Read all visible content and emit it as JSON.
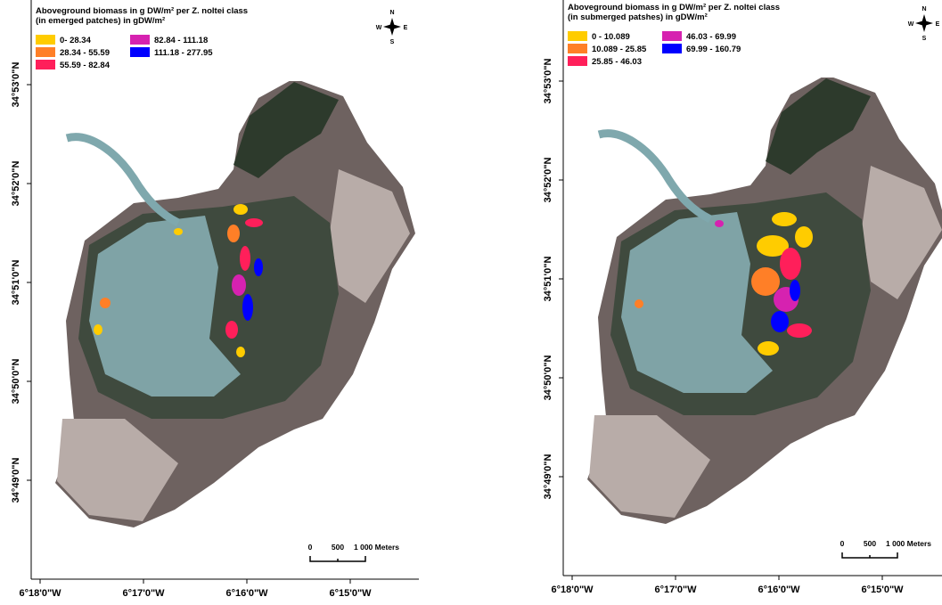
{
  "panels": [
    {
      "legend": {
        "title": [
          "Aboveground biomass in g DW/m² per Z. noltei class",
          "(in emerged patches) in gDW/m²"
        ],
        "classes": [
          {
            "label": "0- 28.34",
            "color": "#ffcc00"
          },
          {
            "label": "28.34 - 55.59",
            "color": "#ff7f27"
          },
          {
            "label": "55.59 - 82.84",
            "color": "#ff1f5a"
          },
          {
            "label": "82.84 - 111.18",
            "color": "#d622b0"
          },
          {
            "label": "111.18 - 277.95",
            "color": "#0000ff"
          }
        ]
      },
      "lat_labels": [
        "34°53'0\"N",
        "34°52'0\"N",
        "34°51'0\"N",
        "34°50'0\"N",
        "34°49'0\"N"
      ],
      "lon_labels": [
        "6°18'0\"W",
        "6°17'0\"W",
        "6°16'0\"W",
        "6°15'0\"W"
      ],
      "north": {
        "n": "N",
        "e": "E",
        "s": "S",
        "w": "W"
      },
      "scale": [
        "0",
        "500",
        "1 000 Meters"
      ]
    },
    {
      "legend": {
        "title": [
          "Aboveground biomass in g DW/m² per Z. noltei class",
          "(in submerged patshes) in gDW/m²"
        ],
        "classes": [
          {
            "label": "0 - 10.089",
            "color": "#ffcc00"
          },
          {
            "label": "10.089 - 25.85",
            "color": "#ff7f27"
          },
          {
            "label": "25.85 - 46.03",
            "color": "#ff1f5a"
          },
          {
            "label": "46.03 - 69.99",
            "color": "#d622b0"
          },
          {
            "label": "69.99 - 160.79",
            "color": "#0000ff"
          }
        ]
      },
      "lat_labels": [
        "34°53'0\"N",
        "34°52'0\"N",
        "34°51'0\"N",
        "34°50'0\"N",
        "34°49'0\"N"
      ],
      "lon_labels": [
        "6°18'0\"W",
        "6°17'0\"W",
        "6°16'0\"W",
        "6°15'0\"W"
      ],
      "north": {
        "n": "N",
        "e": "E",
        "s": "S",
        "w": "W"
      },
      "scale": [
        "0",
        "500",
        "1 000 Meters"
      ]
    }
  ]
}
